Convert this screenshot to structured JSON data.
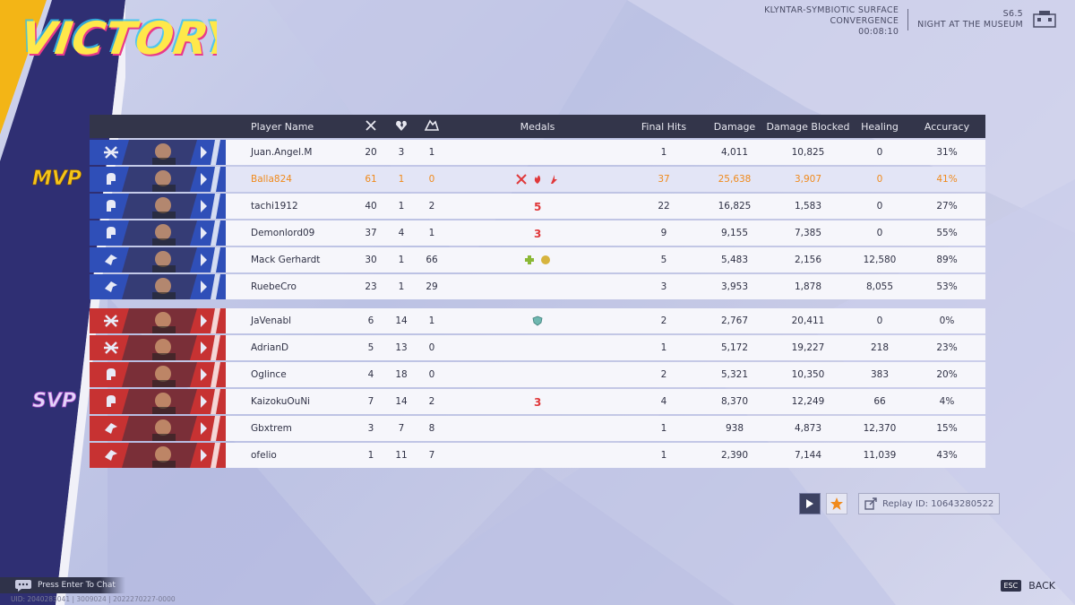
{
  "header": {
    "title": "VICTORY",
    "mode_line1": "KLYNTAR-SYMBIOTIC SURFACE",
    "mode_line2": "CONVERGENCE",
    "time": "00:08:10",
    "season": "S6.5",
    "map_name": "NIGHT AT THE MUSEUM"
  },
  "badges": {
    "mvp": "MVP",
    "svp": "SVP"
  },
  "columns": {
    "player_name": "Player Name",
    "kills_icon": "crossed-swords-icon",
    "deaths_icon": "broken-heart-icon",
    "assists_icon": "handshake-icon",
    "medals": "Medals",
    "final_hits": "Final Hits",
    "damage": "Damage",
    "damage_blocked": "Damage Blocked",
    "healing": "Healing",
    "accuracy": "Accuracy"
  },
  "colors": {
    "ally": "#2f4fb8",
    "enemy": "#c73232",
    "highlight": "#f08a1c",
    "header": "#33354a"
  },
  "ally_rows": [
    {
      "role": "vanguard",
      "name": "Juan.Angel.M",
      "k": "20",
      "d": "3",
      "a": "1",
      "medals": [],
      "fh": "1",
      "dmg": "4,011",
      "blk": "10,825",
      "heal": "0",
      "acc": "31%"
    },
    {
      "role": "duelist",
      "name": "Balla824",
      "k": "61",
      "d": "1",
      "a": "0",
      "medals": [
        "kills-medal-icon",
        "flame-medal-icon",
        "streak-medal-icon"
      ],
      "fh": "37",
      "dmg": "25,638",
      "blk": "3,907",
      "heal": "0",
      "acc": "41%",
      "own": true
    },
    {
      "role": "duelist",
      "name": "tachi1912",
      "k": "40",
      "d": "1",
      "a": "2",
      "medals": [
        "streak-5-medal-icon"
      ],
      "fh": "22",
      "dmg": "16,825",
      "blk": "1,583",
      "heal": "0",
      "acc": "27%"
    },
    {
      "role": "duelist",
      "name": "Demonlord09",
      "k": "37",
      "d": "4",
      "a": "1",
      "medals": [
        "streak-3-medal-icon"
      ],
      "fh": "9",
      "dmg": "9,155",
      "blk": "7,385",
      "heal": "0",
      "acc": "55%"
    },
    {
      "role": "strategist",
      "name": "Mack Gerhardt",
      "k": "30",
      "d": "1",
      "a": "66",
      "medals": [
        "heal-medal-icon",
        "assist-medal-icon"
      ],
      "fh": "5",
      "dmg": "5,483",
      "blk": "2,156",
      "heal": "12,580",
      "acc": "89%"
    },
    {
      "role": "strategist",
      "name": "RuebeCro",
      "k": "23",
      "d": "1",
      "a": "29",
      "medals": [],
      "fh": "3",
      "dmg": "3,953",
      "blk": "1,878",
      "heal": "8,055",
      "acc": "53%"
    }
  ],
  "enemy_rows": [
    {
      "role": "vanguard",
      "name": "JaVenabl",
      "k": "6",
      "d": "14",
      "a": "1",
      "medals": [
        "shield-medal-icon"
      ],
      "fh": "2",
      "dmg": "2,767",
      "blk": "20,411",
      "heal": "0",
      "acc": "0%"
    },
    {
      "role": "vanguard",
      "name": "AdrianD",
      "k": "5",
      "d": "13",
      "a": "0",
      "medals": [],
      "fh": "1",
      "dmg": "5,172",
      "blk": "19,227",
      "heal": "218",
      "acc": "23%"
    },
    {
      "role": "duelist",
      "name": "Oglince",
      "k": "4",
      "d": "18",
      "a": "0",
      "medals": [],
      "fh": "2",
      "dmg": "5,321",
      "blk": "10,350",
      "heal": "383",
      "acc": "20%"
    },
    {
      "role": "duelist",
      "name": "KaizokuOuNi",
      "k": "7",
      "d": "14",
      "a": "2",
      "medals": [
        "streak-3-medal-icon"
      ],
      "fh": "4",
      "dmg": "8,370",
      "blk": "12,249",
      "heal": "66",
      "acc": "4%"
    },
    {
      "role": "strategist",
      "name": "Gbxtrem",
      "k": "3",
      "d": "7",
      "a": "8",
      "medals": [],
      "fh": "1",
      "dmg": "938",
      "blk": "4,873",
      "heal": "12,370",
      "acc": "15%"
    },
    {
      "role": "strategist",
      "name": "ofelio",
      "k": "1",
      "d": "11",
      "a": "7",
      "medals": [],
      "fh": "1",
      "dmg": "2,390",
      "blk": "7,144",
      "heal": "11,039",
      "acc": "43%"
    }
  ],
  "replay": {
    "label": "Replay ID: 10643280522"
  },
  "footer": {
    "chat_prompt": "Press Enter To Chat",
    "uid_line": "UID: 2040283041 | 3009024 | 2022270227-0000",
    "esc_key": "ESC",
    "back_label": "BACK"
  }
}
